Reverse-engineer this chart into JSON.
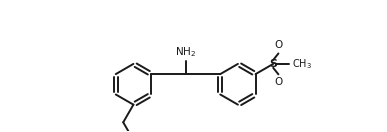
{
  "background_color": "#ffffff",
  "line_color": "#1a1a1a",
  "line_width": 1.4,
  "font_size": 7.5,
  "figsize": [
    3.87,
    1.32
  ],
  "dpi": 100,
  "xlim": [
    -1.5,
    10.5
  ],
  "ylim": [
    -1.8,
    3.2
  ]
}
